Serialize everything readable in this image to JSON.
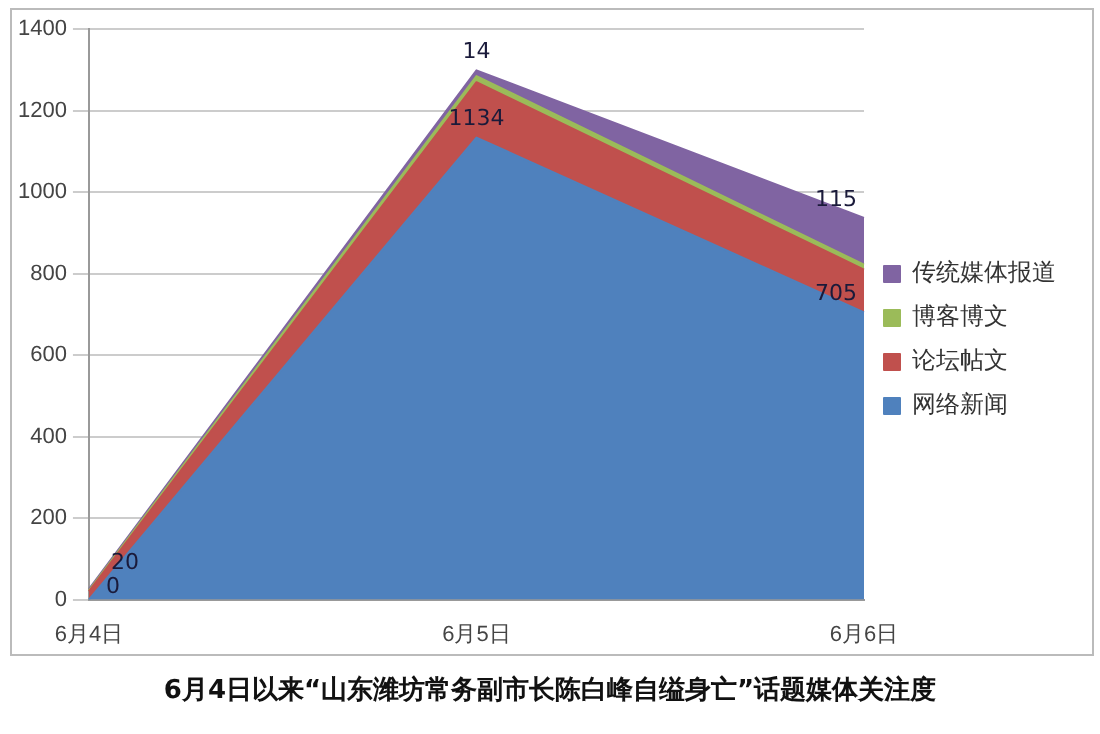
{
  "chart_data": {
    "type": "area",
    "title": "6月4日以来“山东潍坊常务副市长陈白峰自缢身亡”话题媒体关注度",
    "categories": [
      "6月4日",
      "6月5日",
      "6月6日"
    ],
    "stacked": true,
    "ylim": [
      0,
      1400
    ],
    "yticks": [
      0,
      200,
      400,
      600,
      800,
      1000,
      1200,
      1400
    ],
    "grid": "y",
    "legend": "right",
    "series": [
      {
        "name": "网络新闻",
        "color": "#4f81bd",
        "values": [
          0,
          1134,
          705
        ],
        "value_labels": [
          "0",
          "1134",
          "705"
        ]
      },
      {
        "name": "论坛帖文",
        "color": "#c0504d",
        "values": [
          20,
          136,
          105
        ],
        "value_labels": [
          "20",
          null,
          null
        ]
      },
      {
        "name": "博客博文",
        "color": "#9bbb59",
        "values": [
          3,
          15,
          12
        ],
        "value_labels": [
          null,
          null,
          null
        ]
      },
      {
        "name": "传统媒体报道",
        "color": "#8064a2",
        "values": [
          3,
          14,
          115
        ],
        "value_labels": [
          null,
          "14",
          "115"
        ]
      }
    ]
  }
}
